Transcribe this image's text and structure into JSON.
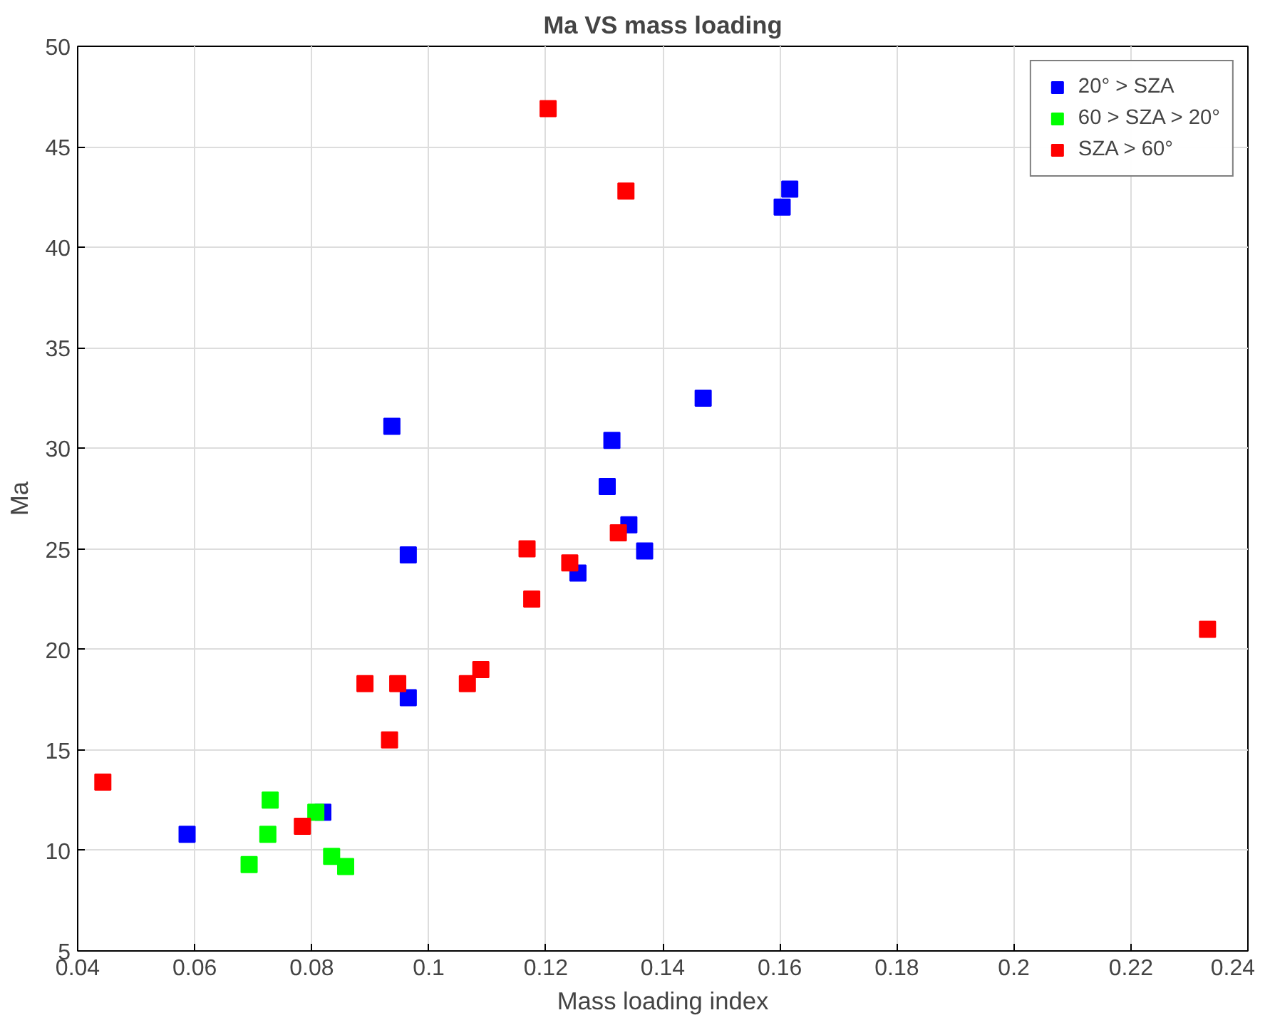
{
  "chart_data": {
    "type": "scatter",
    "title": "Ma VS mass loading",
    "xlabel": "Mass loading index",
    "ylabel": "Ma",
    "xlim": [
      0.04,
      0.24
    ],
    "xticks": [
      0.04,
      0.06,
      0.08,
      0.1,
      0.12,
      0.14,
      0.16,
      0.18,
      0.2,
      0.22,
      0.24
    ],
    "ylim": [
      5,
      50
    ],
    "yticks": [
      5,
      10,
      15,
      20,
      25,
      30,
      35,
      40,
      45,
      50
    ],
    "grid": true,
    "legend": "top right",
    "marker": "square",
    "series": [
      {
        "name": "20° > SZA",
        "color": "#0000ff",
        "x": [
          0.0587,
          0.0819,
          0.0965,
          0.0937,
          0.0965,
          0.1469,
          0.1313,
          0.1305,
          0.1342,
          0.1369,
          0.1255,
          0.1604,
          0.1617
        ],
        "values": [
          10.8,
          11.9,
          17.6,
          31.1,
          24.7,
          32.5,
          30.4,
          28.1,
          26.2,
          24.9,
          23.8,
          42.0,
          42.9
        ]
      },
      {
        "name": "60 > SZA > 20°",
        "color": "#00ff00",
        "x": [
          0.0729,
          0.0725,
          0.0693,
          0.0807,
          0.0834,
          0.0858
        ],
        "values": [
          12.5,
          10.8,
          9.3,
          11.9,
          9.7,
          9.2
        ]
      },
      {
        "name": "SZA > 60°",
        "color": "#ff0000",
        "x": [
          0.0443,
          0.0784,
          0.0891,
          0.0947,
          0.0933,
          0.1066,
          0.1089,
          0.1168,
          0.1176,
          0.1241,
          0.1324,
          0.1204,
          0.1337,
          0.2331
        ],
        "values": [
          13.4,
          11.2,
          18.3,
          18.3,
          15.5,
          18.3,
          19.0,
          25.0,
          22.5,
          24.3,
          25.8,
          46.9,
          42.8,
          21.0
        ]
      }
    ]
  }
}
